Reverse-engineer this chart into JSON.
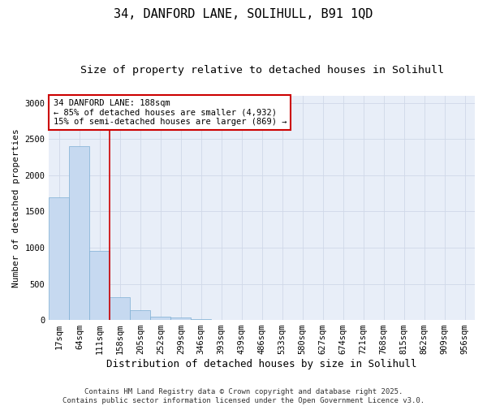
{
  "title1": "34, DANFORD LANE, SOLIHULL, B91 1QD",
  "title2": "Size of property relative to detached houses in Solihull",
  "xlabel": "Distribution of detached houses by size in Solihull",
  "ylabel": "Number of detached properties",
  "categories": [
    "17sqm",
    "64sqm",
    "111sqm",
    "158sqm",
    "205sqm",
    "252sqm",
    "299sqm",
    "346sqm",
    "393sqm",
    "439sqm",
    "486sqm",
    "533sqm",
    "580sqm",
    "627sqm",
    "674sqm",
    "721sqm",
    "768sqm",
    "815sqm",
    "862sqm",
    "909sqm",
    "956sqm"
  ],
  "values": [
    1700,
    2400,
    950,
    320,
    130,
    50,
    30,
    10,
    5,
    2,
    1,
    0,
    0,
    0,
    0,
    0,
    0,
    0,
    0,
    0,
    0
  ],
  "bar_color": "#c6d9f0",
  "bar_edge_color": "#7eafd4",
  "grid_color": "#d0d8e8",
  "background_color": "#e8eef8",
  "vline_color": "#cc0000",
  "vline_x_index": 2.5,
  "annotation_text": "34 DANFORD LANE: 188sqm\n← 85% of detached houses are smaller (4,932)\n15% of semi-detached houses are larger (869) →",
  "annotation_box_color": "#cc0000",
  "ylim": [
    0,
    3100
  ],
  "yticks": [
    0,
    500,
    1000,
    1500,
    2000,
    2500,
    3000
  ],
  "footer": "Contains HM Land Registry data © Crown copyright and database right 2025.\nContains public sector information licensed under the Open Government Licence v3.0.",
  "title1_fontsize": 11,
  "title2_fontsize": 9.5,
  "xlabel_fontsize": 9,
  "ylabel_fontsize": 8,
  "tick_fontsize": 7.5,
  "annotation_fontsize": 7.5,
  "footer_fontsize": 6.5
}
